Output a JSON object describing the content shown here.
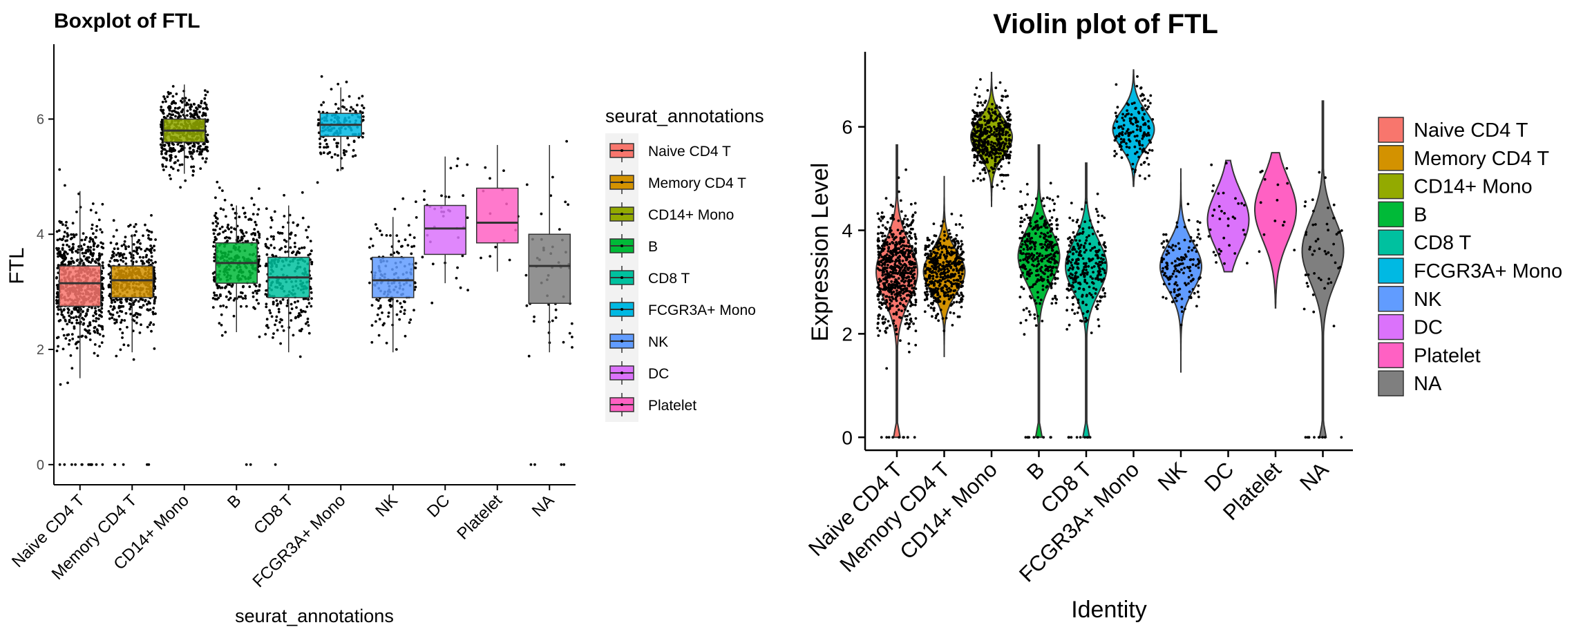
{
  "chart_data": [
    {
      "type": "boxplot",
      "title": "Boxplot of FTL",
      "xlabel": "seurat_annotations",
      "ylabel": "FTL",
      "ylim": [
        -0.35,
        7.3
      ],
      "yticks": [
        0,
        2,
        4,
        6
      ],
      "grid": false,
      "legend_position": "right",
      "legend_title": "seurat_annotations",
      "legend": [
        "Naive CD4 T",
        "Memory CD4 T",
        "CD14+ Mono",
        "B",
        "CD8 T",
        "FCGR3A+ Mono",
        "NK",
        "DC",
        "Platelet"
      ],
      "categories": [
        "Naive CD4 T",
        "Memory CD4 T",
        "CD14+ Mono",
        "B",
        "CD8 T",
        "FCGR3A+ Mono",
        "NK",
        "DC",
        "Platelet",
        "NA"
      ],
      "colors": [
        "#F8766D",
        "#D39200",
        "#93AA00",
        "#00BA38",
        "#00C19F",
        "#00B9E3",
        "#619CFF",
        "#DB72FB",
        "#FF61C3",
        "#7F7F7F"
      ],
      "boxes": [
        {
          "q1": 2.75,
          "median": 3.15,
          "q3": 3.45,
          "whisker_low": 1.5,
          "whisker_high": 4.75
        },
        {
          "q1": 2.9,
          "median": 3.2,
          "q3": 3.45,
          "whisker_low": 1.95,
          "whisker_high": 4.0
        },
        {
          "q1": 5.6,
          "median": 5.8,
          "q3": 6.0,
          "whisker_low": 5.05,
          "whisker_high": 6.6
        },
        {
          "q1": 3.15,
          "median": 3.5,
          "q3": 3.85,
          "whisker_low": 2.3,
          "whisker_high": 4.5
        },
        {
          "q1": 2.9,
          "median": 3.25,
          "q3": 3.6,
          "whisker_low": 1.95,
          "whisker_high": 4.5
        },
        {
          "q1": 5.7,
          "median": 5.9,
          "q3": 6.1,
          "whisker_low": 5.1,
          "whisker_high": 6.55
        },
        {
          "q1": 2.9,
          "median": 3.2,
          "q3": 3.6,
          "whisker_low": 1.95,
          "whisker_high": 4.3
        },
        {
          "q1": 3.65,
          "median": 4.1,
          "q3": 4.5,
          "whisker_low": 3.15,
          "whisker_high": 5.35
        },
        {
          "q1": 3.85,
          "median": 4.2,
          "q3": 4.8,
          "whisker_low": 3.35,
          "whisker_high": 5.55
        },
        {
          "q1": 2.8,
          "median": 3.45,
          "q3": 4.0,
          "whisker_low": 1.95,
          "whisker_high": 5.55
        }
      ],
      "point_counts": [
        700,
        480,
        480,
        350,
        280,
        160,
        160,
        35,
        14,
        50
      ],
      "zero_counts": [
        14,
        5,
        0,
        2,
        1,
        0,
        0,
        0,
        0,
        4
      ]
    },
    {
      "type": "violin",
      "title": "Violin plot of FTL",
      "xlabel": "Identity",
      "ylabel": "Expression Level",
      "ylim": [
        -0.25,
        7.45
      ],
      "yticks": [
        0,
        2,
        4,
        6
      ],
      "grid": false,
      "legend_position": "right",
      "legend": [
        "Naive CD4 T",
        "Memory CD4 T",
        "CD14+ Mono",
        "B",
        "CD8 T",
        "FCGR3A+ Mono",
        "NK",
        "DC",
        "Platelet",
        "NA"
      ],
      "categories": [
        "Naive CD4 T",
        "Memory CD4 T",
        "CD14+ Mono",
        "B",
        "CD8 T",
        "FCGR3A+ Mono",
        "NK",
        "DC",
        "Platelet",
        "NA"
      ],
      "colors": [
        "#F8766D",
        "#D39200",
        "#93AA00",
        "#00BA38",
        "#00C19F",
        "#00B9E3",
        "#619CFF",
        "#DB72FB",
        "#FF61C3",
        "#7F7F7F"
      ],
      "violins": [
        {
          "min": 0,
          "max": 5.65,
          "center": 3.2,
          "sd": 0.55,
          "low_tail": true
        },
        {
          "min": 1.55,
          "max": 5.05,
          "center": 3.2,
          "sd": 0.4,
          "low_tail": false
        },
        {
          "min": 4.45,
          "max": 7.05,
          "center": 5.8,
          "sd": 0.35,
          "low_tail": false
        },
        {
          "min": 0,
          "max": 5.65,
          "center": 3.5,
          "sd": 0.5,
          "low_tail": true
        },
        {
          "min": 0,
          "max": 5.3,
          "center": 3.3,
          "sd": 0.5,
          "low_tail": true
        },
        {
          "min": 4.85,
          "max": 7.1,
          "center": 5.95,
          "sd": 0.35,
          "low_tail": false
        },
        {
          "min": 1.25,
          "max": 5.2,
          "center": 3.3,
          "sd": 0.45,
          "low_tail": false
        },
        {
          "min": 3.2,
          "max": 5.35,
          "center": 4.2,
          "sd": 0.55,
          "low_tail": false
        },
        {
          "min": 2.5,
          "max": 5.5,
          "center": 4.4,
          "sd": 0.6,
          "low_tail": false
        },
        {
          "min": 0,
          "max": 6.5,
          "center": 3.6,
          "sd": 0.6,
          "low_tail": true
        }
      ],
      "point_counts": [
        650,
        450,
        450,
        340,
        270,
        160,
        150,
        35,
        14,
        50
      ]
    }
  ]
}
